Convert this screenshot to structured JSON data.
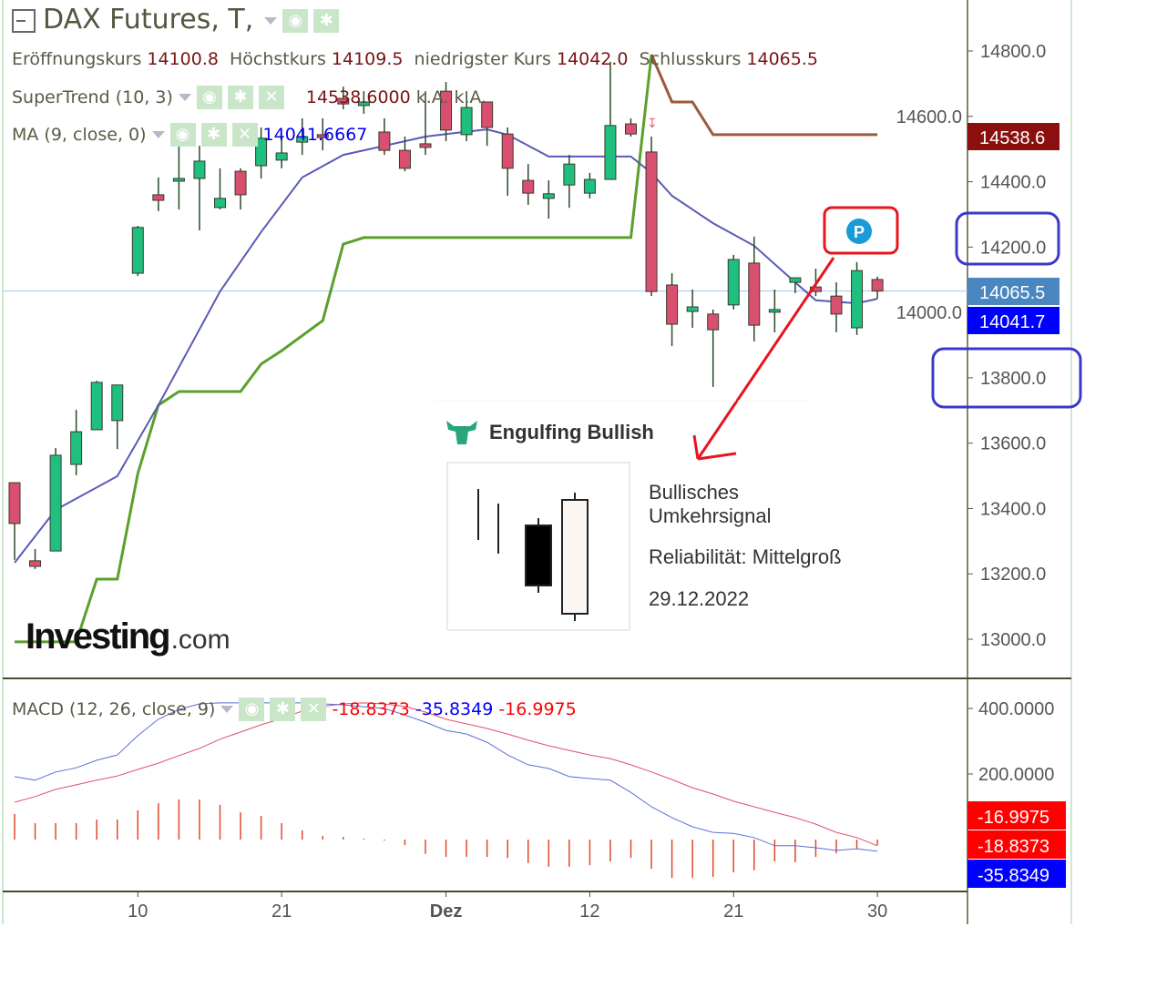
{
  "header": {
    "title": "DAX Futures, T,",
    "ohlc": [
      {
        "label": "Eröffnungskurs",
        "value": "14100.8"
      },
      {
        "label": "Höchstkurs",
        "value": "14109.5"
      },
      {
        "label": "niedrigster Kurs",
        "value": "14042.0"
      },
      {
        "label": "Schlusskurs",
        "value": "14065.5"
      }
    ],
    "supertrend": {
      "label": "SuperTrend (10, 3)",
      "value": "14538.6000",
      "v2": "k.A.",
      "v3": "k.A."
    },
    "ma": {
      "label": "MA (9, close, 0)",
      "value": "14041.6667"
    },
    "macd": {
      "label": "MACD (12, 26, close, 9)",
      "v1": "-18.8373",
      "v2": "-35.8349",
      "v3": "-16.9975"
    }
  },
  "popup": {
    "title": "Engulfing Bullish",
    "line1": "Bullisches",
    "line2": "Umkehrsignal",
    "reliability": "Reliabilität: Mittelgroß",
    "date": "29.12.2022",
    "marker": "P"
  },
  "logo": {
    "text": "Investing",
    "suffix": ".com"
  },
  "colors": {
    "up": "#1fbf7f",
    "down": "#d94f70",
    "ma": "#5a5ab8",
    "supertrend_up": "#5aa02c",
    "supertrend_down": "#9c5a3c",
    "macd": "#5b6fd8",
    "signal": "#e0506a",
    "hist": "#e0482a",
    "annot_red": "#e8141e",
    "annot_blue": "#3a3ac8"
  },
  "chart_data": [
    {
      "type": "candlestick",
      "yticks": [
        "14800.0",
        "14600.0",
        "14400.0",
        "14200.0",
        "14000.0",
        "13800.0",
        "13600.0",
        "13400.0",
        "13200.0",
        "13000.0"
      ],
      "ylim": [
        13000,
        14800
      ],
      "xticks": [
        {
          "i": 6,
          "label": "10"
        },
        {
          "i": 13,
          "label": "21"
        },
        {
          "i": 21,
          "label": "Dez"
        },
        {
          "i": 28,
          "label": "12"
        },
        {
          "i": 35,
          "label": "21"
        },
        {
          "i": 42,
          "label": "30"
        }
      ],
      "ohlc": [
        [
          13479,
          13479,
          13243,
          13354
        ],
        [
          13240,
          13276,
          13215,
          13223
        ],
        [
          13270,
          13585,
          13270,
          13563
        ],
        [
          13535,
          13702,
          13502,
          13635
        ],
        [
          13641,
          13791,
          13641,
          13786
        ],
        [
          13669,
          13778,
          13582,
          13778
        ],
        [
          14120,
          14265,
          14112,
          14260
        ],
        [
          14360,
          14413,
          14310,
          14343
        ],
        [
          14402,
          14510,
          14315,
          14410
        ],
        [
          14410,
          14510,
          14251,
          14463
        ],
        [
          14321,
          14441,
          14315,
          14349
        ],
        [
          14432,
          14441,
          14315,
          14360
        ],
        [
          14449,
          14566,
          14410,
          14533
        ],
        [
          14466,
          14538,
          14441,
          14488
        ],
        [
          14521,
          14594,
          14482,
          14538
        ],
        [
          14544,
          14594,
          14496,
          14535
        ],
        [
          14655,
          14691,
          14622,
          14638
        ],
        [
          14633,
          14677,
          14608,
          14644
        ],
        [
          14552,
          14594,
          14482,
          14496
        ],
        [
          14496,
          14538,
          14432,
          14441
        ],
        [
          14516,
          14677,
          14482,
          14505
        ],
        [
          14677,
          14705,
          14524,
          14558
        ],
        [
          14544,
          14677,
          14524,
          14627
        ],
        [
          14644,
          14644,
          14510,
          14566
        ],
        [
          14546,
          14566,
          14357,
          14441
        ],
        [
          14404,
          14454,
          14329,
          14365
        ],
        [
          14349,
          14404,
          14287,
          14363
        ],
        [
          14390,
          14482,
          14320,
          14454
        ],
        [
          14365,
          14427,
          14349,
          14407
        ],
        [
          14407,
          14767,
          14407,
          14572
        ],
        [
          14577,
          14594,
          14538,
          14546
        ],
        [
          14491,
          14538,
          14050,
          14064
        ],
        [
          14084,
          14120,
          13897,
          13964
        ],
        [
          14003,
          14070,
          13953,
          14017
        ],
        [
          13995,
          14009,
          13772,
          13947
        ],
        [
          14023,
          14176,
          14009,
          14162
        ],
        [
          14151,
          14232,
          13911,
          13961
        ],
        [
          14003,
          14070,
          13939,
          14009
        ],
        [
          14092,
          14106,
          14059,
          14106
        ],
        [
          14078,
          14134,
          14050,
          14064
        ],
        [
          14050,
          14092,
          13939,
          13995
        ],
        [
          13953,
          14154,
          13931,
          14128
        ],
        [
          14100.8,
          14109.5,
          14042.0,
          14065.5
        ]
      ],
      "last_close": 14065.5,
      "price_tags": [
        {
          "value": "14538.6",
          "color": "#8b0f0f"
        },
        {
          "value": "14065.5",
          "color": "#4a86c0"
        },
        {
          "value": "14041.7",
          "color": "#0000ff"
        }
      ],
      "ma": [
        [
          0,
          13234
        ],
        [
          2,
          13396
        ],
        [
          5,
          13499
        ],
        [
          7,
          13716
        ],
        [
          10,
          14064
        ],
        [
          12,
          14246
        ],
        [
          14,
          14413
        ],
        [
          16,
          14482
        ],
        [
          18,
          14510
        ],
        [
          20,
          14538
        ],
        [
          21,
          14546
        ],
        [
          23,
          14560
        ],
        [
          24,
          14544
        ],
        [
          26,
          14477
        ],
        [
          30,
          14477
        ],
        [
          31,
          14427
        ],
        [
          32,
          14357
        ],
        [
          34,
          14273
        ],
        [
          36,
          14204
        ],
        [
          38,
          14092
        ],
        [
          39,
          14037
        ],
        [
          41,
          14028
        ],
        [
          42,
          14041.7
        ]
      ],
      "supertrend_up": [
        [
          0,
          12992
        ],
        [
          3,
          12992
        ],
        [
          4,
          13184
        ],
        [
          5,
          13184
        ],
        [
          6,
          13507
        ],
        [
          7,
          13716
        ],
        [
          8,
          13758
        ],
        [
          11,
          13758
        ],
        [
          12,
          13842
        ],
        [
          13,
          13883
        ],
        [
          15,
          13975
        ],
        [
          16,
          14209
        ],
        [
          17,
          14229
        ],
        [
          30,
          14229
        ],
        [
          31,
          14789
        ]
      ],
      "supertrend_down": [
        [
          31,
          14789
        ],
        [
          32,
          14644
        ],
        [
          33,
          14644
        ],
        [
          34,
          14544
        ],
        [
          42,
          14544
        ]
      ]
    },
    {
      "type": "line+bar",
      "yticks": [
        "400.0000",
        "200.0000"
      ],
      "macd": [
        192,
        181,
        206,
        219,
        242,
        258,
        317,
        367,
        397,
        414,
        417,
        417,
        417,
        417,
        417,
        414,
        411,
        405,
        400,
        380,
        358,
        333,
        322,
        297,
        258,
        228,
        217,
        192,
        186,
        181,
        144,
        100,
        67,
        39,
        22,
        19,
        6,
        -19,
        -19,
        -25,
        -33,
        -28,
        -35.8349
      ],
      "signal": [
        114,
        131,
        153,
        167,
        181,
        194,
        214,
        233,
        256,
        278,
        306,
        328,
        350,
        369,
        392,
        406,
        414,
        417,
        414,
        406,
        389,
        367,
        353,
        339,
        322,
        303,
        286,
        272,
        258,
        247,
        228,
        206,
        183,
        158,
        139,
        117,
        100,
        83,
        67,
        47,
        22,
        6,
        -18.8373
      ],
      "histogram": [
        78,
        50,
        50,
        50,
        61,
        61,
        89,
        111,
        122,
        122,
        106,
        83,
        72,
        50,
        28,
        11,
        8,
        3,
        -3,
        -17,
        -44,
        -53,
        -53,
        -53,
        -56,
        -72,
        -83,
        -83,
        -78,
        -67,
        -56,
        -89,
        -117,
        -117,
        -114,
        -100,
        -94,
        -67,
        -69,
        -53,
        -42,
        -28,
        -16.9975
      ],
      "tags": [
        {
          "value": "-16.9975",
          "color": "#ff0000"
        },
        {
          "value": "-18.8373",
          "color": "#ff0000"
        },
        {
          "value": "-35.8349",
          "color": "#0000ff"
        }
      ]
    }
  ]
}
